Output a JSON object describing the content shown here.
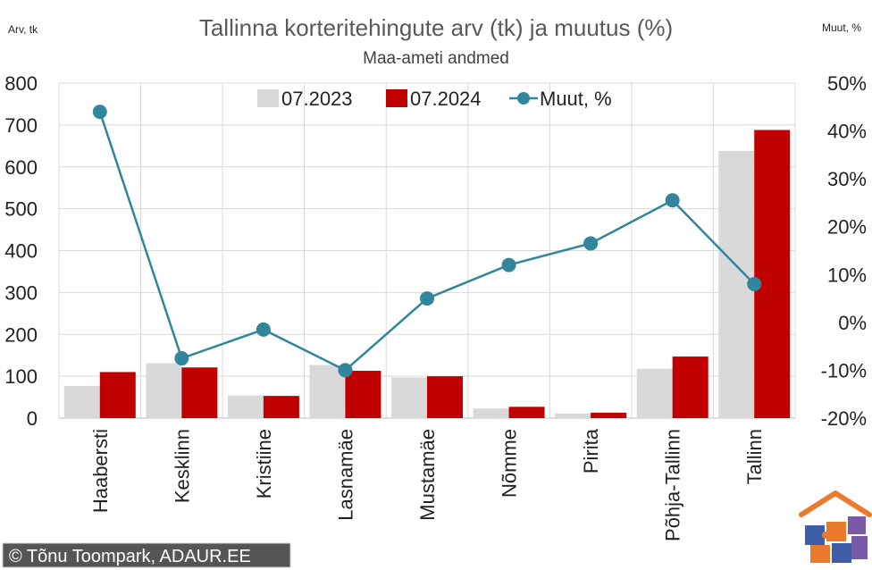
{
  "chart_data": {
    "type": "bar",
    "title": "Tallinna korteritehingute arv (tk) ja muutus (%)",
    "subtitle": "Maa-ameti andmed",
    "ylabel_left": "Arv, tk",
    "ylabel_right": "Muut, %",
    "categories": [
      "Haabersti",
      "Kesklinn",
      "Kristiine",
      "Lasnamäe",
      "Mustamäe",
      "Nõmme",
      "Pirita",
      "Põhja-Tallinn",
      "Tallinn"
    ],
    "series": [
      {
        "name": "07.2023",
        "kind": "bar",
        "color": "#d9d9d9",
        "values": [
          77,
          131,
          54,
          127,
          97,
          23,
          11,
          118,
          638
        ]
      },
      {
        "name": "07.2024",
        "kind": "bar",
        "color": "#c00000",
        "values": [
          110,
          121,
          53,
          113,
          100,
          27,
          13,
          147,
          688
        ]
      },
      {
        "name": "Muut, %",
        "kind": "line",
        "axis": "right",
        "color": "#31859c",
        "values": [
          44,
          -7.5,
          -1.5,
          -10,
          5,
          12,
          16.5,
          25.5,
          8
        ]
      }
    ],
    "ylim_left": [
      0,
      800
    ],
    "yticks_left": [
      "0",
      "100",
      "200",
      "300",
      "400",
      "500",
      "600",
      "700",
      "800"
    ],
    "ylim_right": [
      -20,
      50
    ],
    "yticks_right": [
      "-20%",
      "-10%",
      "0%",
      "10%",
      "20%",
      "30%",
      "40%",
      "50%"
    ],
    "grid": true,
    "legend": "top-center"
  },
  "credit": "© Tõnu Toompark, ADAUR.EE"
}
